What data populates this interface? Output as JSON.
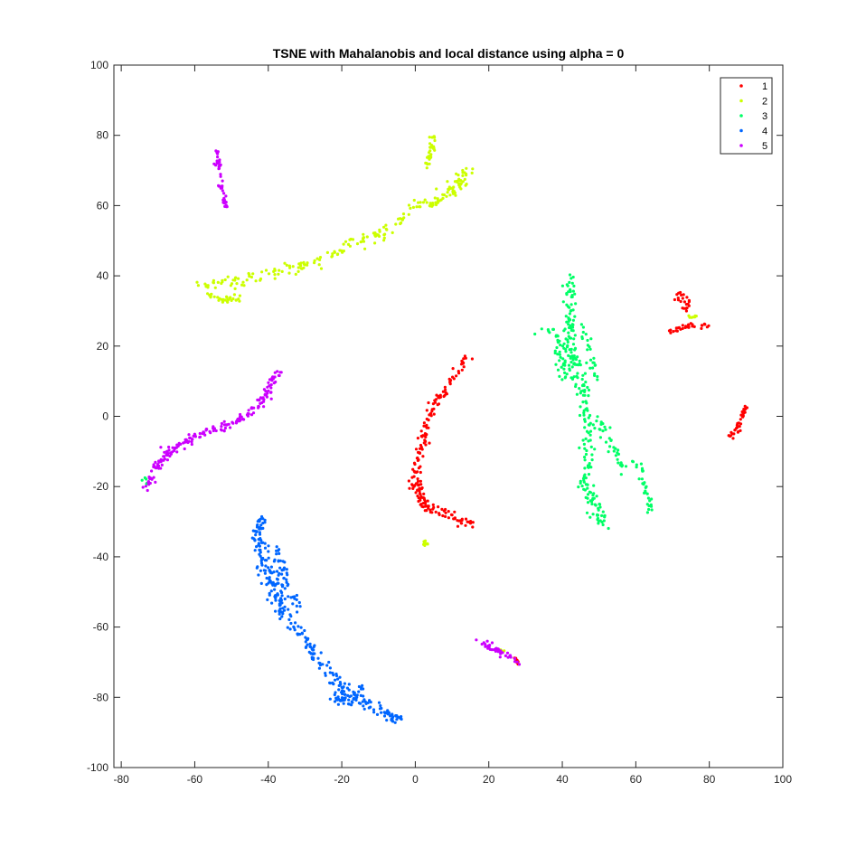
{
  "chart_data": {
    "type": "scatter",
    "title": "TSNE with Mahalanobis and local distance using alpha = 0",
    "xlabel": "",
    "ylabel": "",
    "xlim": [
      -82,
      100
    ],
    "ylim": [
      -100,
      100
    ],
    "xticks": [
      -80,
      -60,
      -40,
      -20,
      0,
      20,
      40,
      60,
      80,
      100
    ],
    "yticks": [
      -100,
      -80,
      -60,
      -40,
      -20,
      0,
      20,
      40,
      60,
      80,
      100
    ],
    "grid": false,
    "legend_position": "top-right",
    "series": [
      {
        "name": "1",
        "color": "#ff0000",
        "segments": [
          {
            "points": [
              [
                14,
                17
              ],
              [
                12,
                14
              ],
              [
                8,
                8
              ],
              [
                5,
                3
              ],
              [
                3,
                -2
              ],
              [
                2,
                -8
              ],
              [
                1,
                -12
              ],
              [
                0.5,
                -18
              ],
              [
                1,
                -22
              ],
              [
                2,
                -25
              ],
              [
                5,
                -27
              ],
              [
                9,
                -28
              ],
              [
                13,
                -30
              ],
              [
                16,
                -31
              ]
            ],
            "n": 170,
            "spread": 1.1
          },
          {
            "points": [
              [
                -1,
                -19
              ],
              [
                1,
                -22
              ],
              [
                3,
                -25
              ]
            ],
            "n": 20,
            "spread": 0.9
          },
          {
            "points": [
              [
                69,
                24
              ],
              [
                74,
                25.5
              ],
              [
                80,
                26
              ]
            ],
            "n": 30,
            "spread": 0.6
          },
          {
            "points": [
              [
                70,
                34
              ],
              [
                73,
                35
              ],
              [
                74,
                30
              ]
            ],
            "n": 22,
            "spread": 0.8
          },
          {
            "points": [
              [
                86,
                -6
              ],
              [
                88,
                -2
              ],
              [
                90,
                2.5
              ]
            ],
            "n": 35,
            "spread": 0.6
          },
          {
            "points": [
              [
                26,
                -68
              ],
              [
                28,
                -70
              ]
            ],
            "n": 8,
            "spread": 0.5
          }
        ]
      },
      {
        "name": "2",
        "color": "#ccff00",
        "segments": [
          {
            "points": [
              [
                -58,
                37
              ],
              [
                -52,
                38
              ],
              [
                -42,
                40
              ],
              [
                -30,
                43
              ],
              [
                -20,
                47
              ],
              [
                -10,
                52
              ],
              [
                -3,
                57
              ],
              [
                5,
                62
              ],
              [
                13,
                68
              ],
              [
                14,
                71
              ]
            ],
            "n": 190,
            "spread": 1.4
          },
          {
            "points": [
              [
                -57,
                35
              ],
              [
                -52,
                33
              ],
              [
                -48,
                34
              ]
            ],
            "n": 30,
            "spread": 0.9
          },
          {
            "points": [
              [
                3,
                71
              ],
              [
                4.5,
                76
              ],
              [
                5,
                80
              ]
            ],
            "n": 30,
            "spread": 0.7
          },
          {
            "points": [
              [
                4,
                60
              ],
              [
                10,
                63
              ],
              [
                13,
                67
              ]
            ],
            "n": 25,
            "spread": 0.7
          },
          {
            "points": [
              [
                2.5,
                -36.5
              ],
              [
                3,
                -35.5
              ]
            ],
            "n": 10,
            "spread": 0.4
          },
          {
            "points": [
              [
                74,
                28
              ],
              [
                76,
                29
              ],
              [
                78,
                28
              ]
            ],
            "n": 8,
            "spread": 0.6
          },
          {
            "points": [
              [
                22,
                -66
              ],
              [
                25,
                -67.5
              ]
            ],
            "n": 6,
            "spread": 0.4
          }
        ]
      },
      {
        "name": "3",
        "color": "#00ff66",
        "segments": [
          {
            "points": [
              [
                42.5,
                40
              ],
              [
                42,
                34
              ],
              [
                42,
                28
              ],
              [
                42,
                20
              ],
              [
                44,
                12
              ],
              [
                46,
                5
              ],
              [
                47,
                -3
              ],
              [
                47,
                -10
              ],
              [
                46,
                -18
              ],
              [
                47,
                -22
              ],
              [
                50,
                -28
              ],
              [
                51,
                -31
              ]
            ],
            "n": 230,
            "spread": 1.4
          },
          {
            "points": [
              [
                34,
                25
              ],
              [
                37,
                24
              ],
              [
                39,
                20
              ],
              [
                40,
                15
              ],
              [
                41,
                10
              ]
            ],
            "n": 45,
            "spread": 1.1
          },
          {
            "points": [
              [
                46,
                25
              ],
              [
                47,
                20
              ],
              [
                48,
                15
              ],
              [
                49,
                10
              ]
            ],
            "n": 25,
            "spread": 1.0
          },
          {
            "points": [
              [
                50,
                0
              ],
              [
                52,
                -5
              ],
              [
                54,
                -10
              ],
              [
                57,
                -15
              ]
            ],
            "n": 35,
            "spread": 1.1
          },
          {
            "points": [
              [
                59,
                -12
              ],
              [
                62,
                -17
              ],
              [
                63,
                -22
              ],
              [
                64,
                -28
              ]
            ],
            "n": 30,
            "spread": 0.8
          },
          {
            "points": [
              [
                -74,
                -17
              ],
              [
                -73,
                -19
              ]
            ],
            "n": 5,
            "spread": 0.4
          }
        ]
      },
      {
        "name": "4",
        "color": "#0066ff",
        "segments": [
          {
            "points": [
              [
                -42,
                -29
              ],
              [
                -43,
                -34
              ],
              [
                -42,
                -40
              ],
              [
                -40,
                -46
              ],
              [
                -37,
                -53
              ],
              [
                -34,
                -59
              ],
              [
                -30,
                -63
              ],
              [
                -27,
                -69
              ],
              [
                -24,
                -73
              ],
              [
                -20,
                -77
              ],
              [
                -15,
                -81
              ],
              [
                -10,
                -84
              ],
              [
                -5,
                -86
              ],
              [
                -4,
                -87
              ]
            ],
            "n": 300,
            "spread": 1.3
          },
          {
            "points": [
              [
                -38,
                -38
              ],
              [
                -36,
                -44
              ],
              [
                -34,
                -50
              ],
              [
                -32,
                -54
              ]
            ],
            "n": 50,
            "spread": 1.1
          },
          {
            "points": [
              [
                -23,
                -79
              ],
              [
                -19,
                -82
              ],
              [
                -16,
                -80
              ],
              [
                -14,
                -76
              ]
            ],
            "n": 35,
            "spread": 0.8
          }
        ]
      },
      {
        "name": "5",
        "color": "#cc00ff",
        "segments": [
          {
            "points": [
              [
                -73,
                -21
              ],
              [
                -71,
                -15
              ],
              [
                -67,
                -10
              ],
              [
                -62,
                -7
              ],
              [
                -56,
                -4
              ],
              [
                -50,
                -2
              ],
              [
                -45,
                1
              ],
              [
                -41,
                5
              ],
              [
                -39,
                10
              ],
              [
                -37,
                14
              ]
            ],
            "n": 190,
            "spread": 0.9
          },
          {
            "points": [
              [
                -54,
                76
              ],
              [
                -53.5,
                70
              ],
              [
                -52.5,
                65
              ],
              [
                -51.5,
                60
              ]
            ],
            "n": 45,
            "spread": 0.6
          },
          {
            "points": [
              [
                17,
                -64
              ],
              [
                21,
                -66
              ],
              [
                25,
                -68
              ],
              [
                28,
                -70
              ]
            ],
            "n": 40,
            "spread": 0.6
          }
        ]
      }
    ]
  }
}
